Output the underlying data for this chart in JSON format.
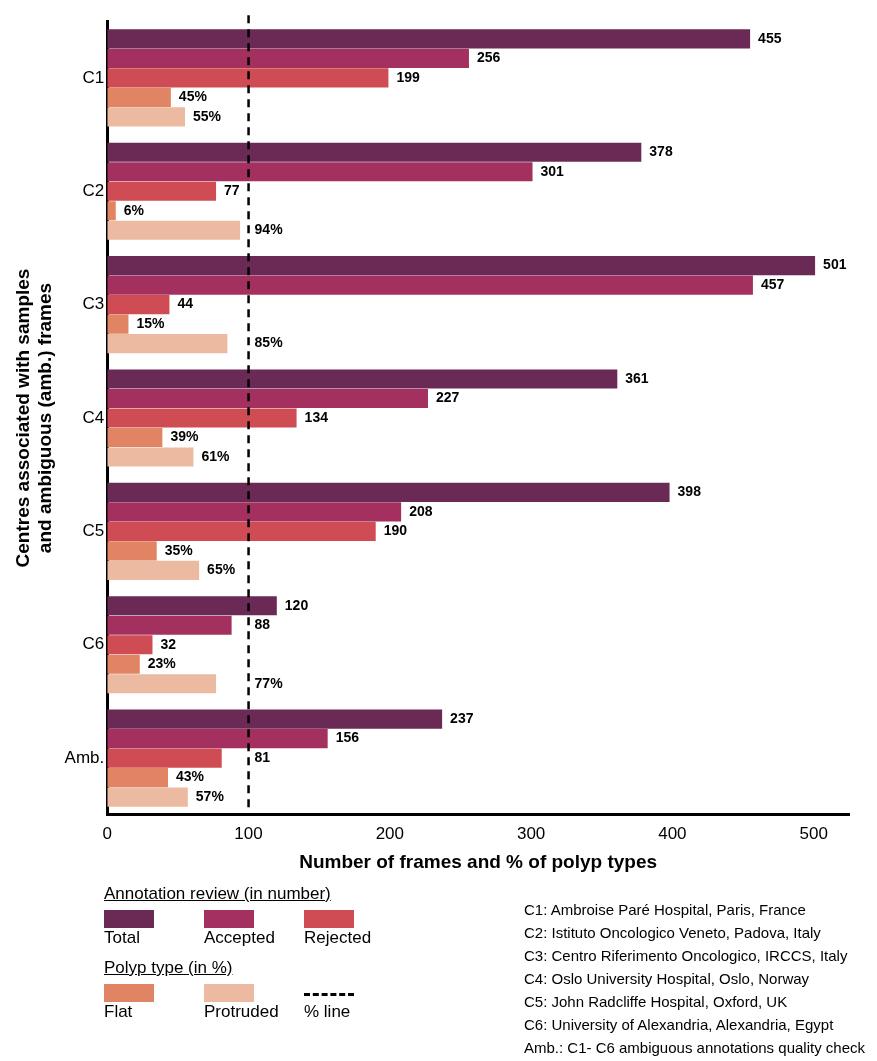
{
  "chart_data": {
    "type": "bar",
    "orientation": "horizontal",
    "xlabel": "Number of frames and % of polyp types",
    "ylabel": "Centres associated with samples and ambiguous (amb.) frames",
    "categories": [
      "C1",
      "C2",
      "C3",
      "C4",
      "C5",
      "C6",
      "Amb."
    ],
    "series": [
      {
        "name": "Total",
        "color": "#6b2a55",
        "values": [
          455,
          378,
          501,
          361,
          398,
          120,
          237
        ],
        "value_labels": [
          "455",
          "378",
          "501",
          "361",
          "398",
          "120",
          "237"
        ]
      },
      {
        "name": "Accepted",
        "color": "#a3305e",
        "values": [
          256,
          301,
          457,
          227,
          208,
          88,
          156
        ],
        "value_labels": [
          "256",
          "301",
          "457",
          "227",
          "208",
          "88",
          "156"
        ]
      },
      {
        "name": "Rejected",
        "color": "#d04c55",
        "values": [
          199,
          77,
          44,
          134,
          190,
          32,
          81
        ],
        "value_labels": [
          "199",
          "77",
          "44",
          "134",
          "190",
          "32",
          "81"
        ]
      },
      {
        "name": "Flat",
        "color": "#e08464",
        "values": [
          45,
          6,
          15,
          39,
          35,
          23,
          43
        ],
        "value_labels": [
          "45%",
          "6%",
          "15%",
          "39%",
          "35%",
          "23%",
          "43%"
        ]
      },
      {
        "name": "Protruded",
        "color": "#ebbaa0",
        "values": [
          55,
          94,
          85,
          61,
          65,
          77,
          57
        ],
        "value_labels": [
          "55%",
          "94%",
          "85%",
          "61%",
          "65%",
          "77%",
          "57%"
        ]
      }
    ],
    "xlim": [
      0,
      525
    ],
    "xticks": [
      0,
      100,
      200,
      300,
      400,
      500
    ],
    "grid": false,
    "legend": "bottom",
    "ref_lines": [
      {
        "axis": "x",
        "value": 100,
        "label": "% line",
        "color": "#000000",
        "line_style": "dashed"
      }
    ],
    "annotations": [
      "Annotation review (in number)",
      "Polyp type (in %)",
      "C1: Ambroise Paré Hospital, Paris, France",
      "C2: Istituto Oncologico Veneto, Padova, Italy",
      "C3: Centro Riferimento Oncologico, IRCCS, Italy",
      "C4: Oslo University Hospital, Oslo, Norway",
      "C5: John Radcliffe Hospital, Oxford, UK",
      "C6: University of Alexandria, Alexandria, Egypt",
      "Amb.: C1- C6 ambiguous annotations quality check"
    ]
  }
}
